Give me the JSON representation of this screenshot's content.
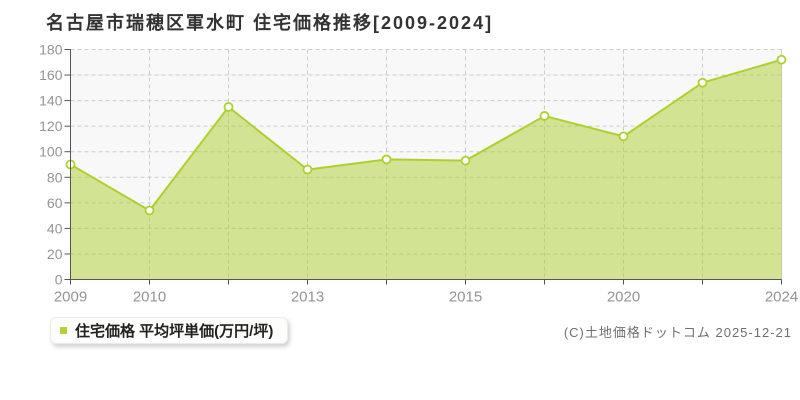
{
  "title": "名古屋市瑞穂区軍水町 住宅価格推移[2009-2024]",
  "legend": {
    "series_label": "住宅価格 平均坪単価(万円/坪)",
    "marker_color": "#b2d333"
  },
  "footer": {
    "copyright": "(C)土地価格ドットコム 2025-12-21"
  },
  "chart_data": {
    "type": "area",
    "title": "名古屋市瑞穂区軍水町 住宅価格推移[2009-2024]",
    "series_name": "住宅価格 平均坪単価(万円/坪)",
    "x_tick_labels": [
      "2009",
      "2010",
      "",
      "2013",
      "",
      "2015",
      "",
      "2020",
      "",
      "2024"
    ],
    "values": [
      90,
      54,
      135,
      86,
      94,
      93,
      128,
      112,
      154,
      172
    ],
    "y_ticks": [
      0,
      20,
      40,
      60,
      80,
      100,
      120,
      140,
      160,
      180
    ],
    "ylim": [
      0,
      180
    ],
    "grid": true,
    "legend_position": "bottom-left",
    "colors": {
      "line": "#acd02e",
      "area_fill": "#acd02e",
      "area_fill_opacity": 0.5,
      "marker_fill": "#ffffff",
      "grid": "#cccccc",
      "plot_border": "#cccccc",
      "axis": "#555555",
      "tick_label": "#949494",
      "plot_bg": "#f8f8f8"
    }
  }
}
